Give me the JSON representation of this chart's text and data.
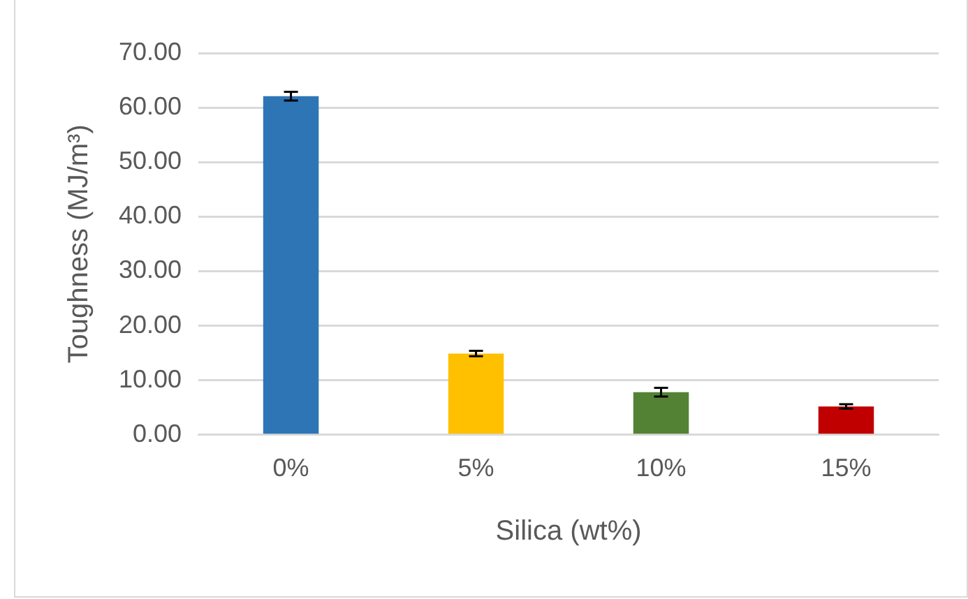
{
  "chart_data": {
    "type": "bar",
    "xlabel": "Silica (wt%)",
    "ylabel": "Toughness (MJ/m³)",
    "categories": [
      "0%",
      "5%",
      "10%",
      "15%"
    ],
    "values": [
      62.1,
      14.9,
      7.8,
      5.2
    ],
    "colors": [
      "#2e75b6",
      "#ffc000",
      "#548235",
      "#c00000"
    ],
    "errors": [
      0.8,
      0.5,
      0.8,
      0.4
    ],
    "ylim": [
      0,
      70
    ],
    "yticks": [
      {
        "value": 0,
        "label": "0.00"
      },
      {
        "value": 10,
        "label": "10.00"
      },
      {
        "value": 20,
        "label": "20.00"
      },
      {
        "value": 30,
        "label": "30.00"
      },
      {
        "value": 40,
        "label": "40.00"
      },
      {
        "value": 50,
        "label": "50.00"
      },
      {
        "value": 60,
        "label": "60.00"
      },
      {
        "value": 70,
        "label": "70.00"
      }
    ],
    "grid": "y"
  }
}
